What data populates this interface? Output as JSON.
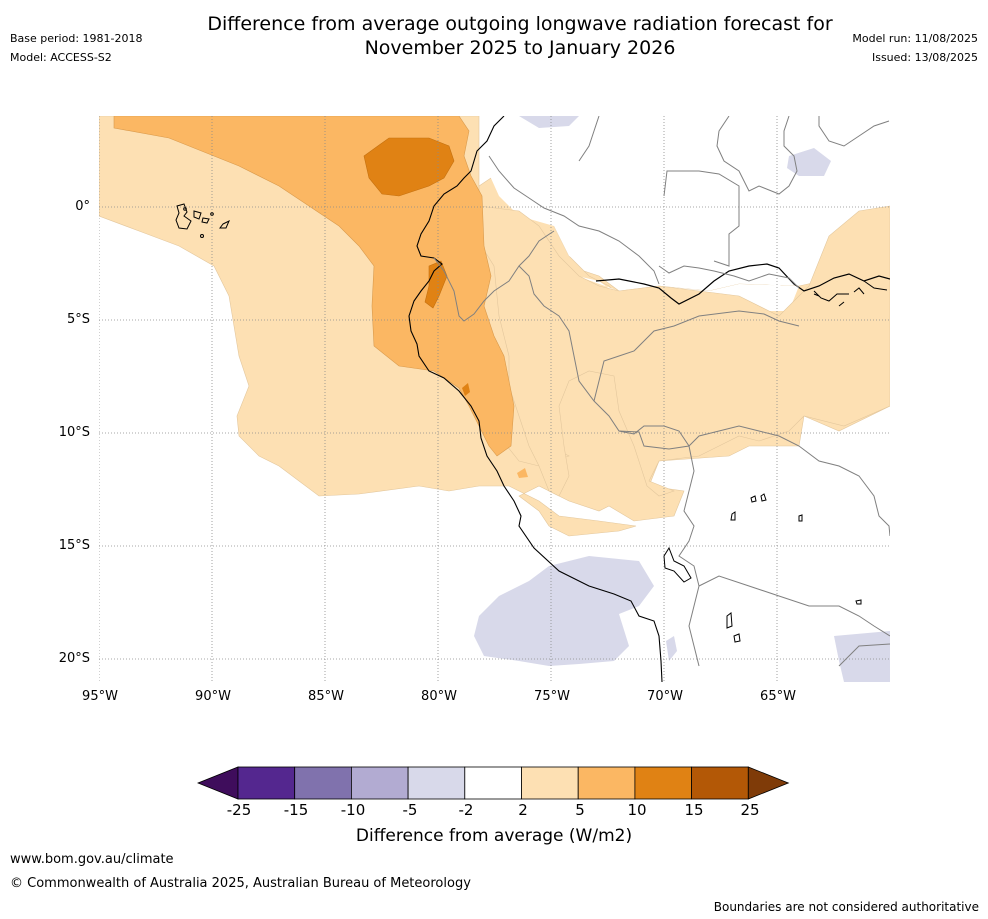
{
  "header": {
    "title_line1": "Difference from average outgoing longwave radiation forecast for",
    "title_line2": "November 2025 to January 2026",
    "base_period": "Base period: 1981-2018",
    "model": "Model: ACCESS-S2",
    "model_run": "Model run: 11/08/2025",
    "issued": "Issued: 13/08/2025"
  },
  "map": {
    "lon_labels": [
      "95°W",
      "90°W",
      "85°W",
      "80°W",
      "75°W",
      "70°W",
      "65°W"
    ],
    "lat_labels": [
      "0°",
      "5°S",
      "10°S",
      "15°S",
      "20°S"
    ]
  },
  "colorbar": {
    "title": "Difference from average (W/m2)",
    "ticks": [
      "-25",
      "-15",
      "-10",
      "-5",
      "-2",
      "2",
      "5",
      "10",
      "15",
      "25"
    ],
    "colors": [
      "#3f0d5c",
      "#54278f",
      "#8072ad",
      "#b2abd2",
      "#d8d9ea",
      "#ffffff",
      "#fde0b3",
      "#fbb763",
      "#e08214",
      "#b35806",
      "#7f3b08"
    ],
    "categories": [
      {
        "range": "< -25",
        "color": "#3f0d5c"
      },
      {
        "range": "-25 to -15",
        "color": "#54278f"
      },
      {
        "range": "-15 to -10",
        "color": "#8072ad"
      },
      {
        "range": "-10 to -5",
        "color": "#b2abd2"
      },
      {
        "range": "-5 to -2",
        "color": "#d8d9ea"
      },
      {
        "range": "-2 to 2",
        "color": "#ffffff"
      },
      {
        "range": "2 to 5",
        "color": "#fde0b3"
      },
      {
        "range": "5 to 10",
        "color": "#fbb763"
      },
      {
        "range": "10 to 15",
        "color": "#e08214"
      },
      {
        "range": "15 to 25",
        "color": "#b35806"
      },
      {
        "range": "> 25",
        "color": "#7f3b08"
      }
    ]
  },
  "footer": {
    "website": "www.bom.gov.au/climate",
    "copyright": "© Commonwealth of Australia 2025, Australian Bureau of Meteorology",
    "disclaimer": "Boundaries are not considered authoritative"
  }
}
